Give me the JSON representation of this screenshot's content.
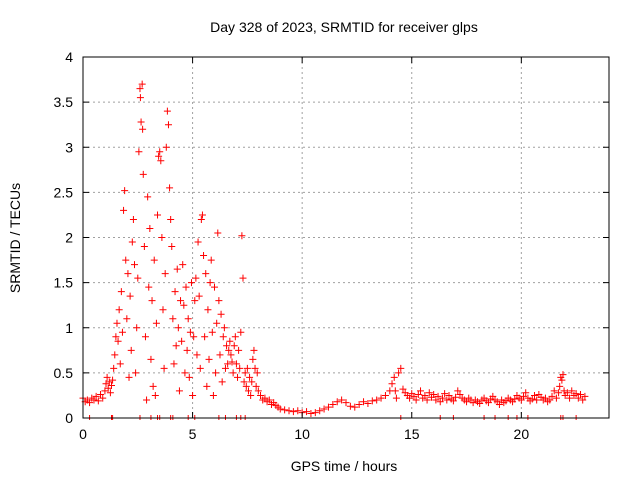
{
  "chart_data": {
    "type": "scatter",
    "title": "Day 328 of 2023, SRMTID for receiver glps",
    "xlabel": "GPS time / hours",
    "ylabel": "SRMTID / TECUs",
    "xlim": [
      0,
      24
    ],
    "ylim": [
      0,
      4
    ],
    "xticks": [
      0,
      5,
      10,
      15,
      20
    ],
    "xtick_labels": [
      "0",
      "5",
      "10",
      "15",
      "20"
    ],
    "yticks": [
      0,
      0.5,
      1,
      1.5,
      2,
      2.5,
      3,
      3.5,
      4
    ],
    "ytick_labels": [
      "0",
      "0.5",
      "1",
      "1.5",
      "2",
      "2.5",
      "3",
      "3.5",
      "4"
    ],
    "grid": true,
    "marker": "+",
    "color": "#ff0000",
    "series": [
      {
        "name": "SRMTID",
        "points": [
          [
            0.0,
            0.22
          ],
          [
            0.1,
            0.18
          ],
          [
            0.2,
            0.2
          ],
          [
            0.3,
            0.17
          ],
          [
            0.4,
            0.22
          ],
          [
            0.5,
            0.2
          ],
          [
            0.6,
            0.24
          ],
          [
            0.7,
            0.19
          ],
          [
            0.8,
            0.26
          ],
          [
            0.9,
            0.22
          ],
          [
            1.0,
            0.3
          ],
          [
            1.05,
            0.38
          ],
          [
            1.1,
            0.45
          ],
          [
            1.15,
            0.33
          ],
          [
            1.2,
            0.4
          ],
          [
            1.25,
            0.28
          ],
          [
            1.3,
            0.36
          ],
          [
            1.35,
            0.42
          ],
          [
            1.4,
            0.55
          ],
          [
            1.45,
            0.7
          ],
          [
            1.5,
            0.9
          ],
          [
            1.55,
            1.05
          ],
          [
            1.6,
            0.85
          ],
          [
            1.65,
            1.2
          ],
          [
            1.7,
            0.6
          ],
          [
            1.75,
            1.4
          ],
          [
            1.8,
            0.95
          ],
          [
            1.85,
            2.3
          ],
          [
            1.9,
            2.52
          ],
          [
            1.95,
            1.75
          ],
          [
            2.0,
            1.1
          ],
          [
            2.05,
            1.6
          ],
          [
            2.1,
            0.45
          ],
          [
            2.15,
            1.35
          ],
          [
            2.2,
            0.75
          ],
          [
            2.25,
            1.95
          ],
          [
            2.3,
            2.2
          ],
          [
            2.35,
            1.7
          ],
          [
            2.4,
            0.5
          ],
          [
            2.45,
            1.0
          ],
          [
            2.5,
            1.55
          ],
          [
            2.55,
            2.95
          ],
          [
            2.6,
            3.65
          ],
          [
            2.62,
            3.55
          ],
          [
            2.65,
            3.28
          ],
          [
            2.7,
            3.7
          ],
          [
            2.72,
            3.2
          ],
          [
            2.75,
            2.7
          ],
          [
            2.8,
            1.9
          ],
          [
            2.85,
            0.9
          ],
          [
            2.9,
            0.2
          ],
          [
            2.95,
            2.45
          ],
          [
            3.0,
            1.45
          ],
          [
            3.05,
            2.1
          ],
          [
            3.1,
            0.65
          ],
          [
            3.15,
            1.3
          ],
          [
            3.2,
            0.35
          ],
          [
            3.25,
            1.75
          ],
          [
            3.3,
            0.25
          ],
          [
            3.35,
            1.05
          ],
          [
            3.4,
            2.25
          ],
          [
            3.45,
            2.9
          ],
          [
            3.5,
            2.95
          ],
          [
            3.55,
            2.85
          ],
          [
            3.6,
            2.0
          ],
          [
            3.65,
            1.2
          ],
          [
            3.7,
            0.55
          ],
          [
            3.75,
            1.6
          ],
          [
            3.8,
            3.0
          ],
          [
            3.85,
            3.4
          ],
          [
            3.9,
            3.25
          ],
          [
            3.95,
            2.55
          ],
          [
            4.0,
            2.2
          ],
          [
            4.05,
            1.9
          ],
          [
            4.1,
            1.1
          ],
          [
            4.15,
            0.6
          ],
          [
            4.2,
            1.4
          ],
          [
            4.25,
            0.8
          ],
          [
            4.3,
            1.65
          ],
          [
            4.35,
            1.0
          ],
          [
            4.4,
            0.3
          ],
          [
            4.45,
            1.3
          ],
          [
            4.5,
            0.85
          ],
          [
            4.55,
            1.7
          ],
          [
            4.6,
            1.25
          ],
          [
            4.65,
            0.5
          ],
          [
            4.7,
            1.45
          ],
          [
            4.75,
            0.75
          ],
          [
            4.8,
            1.1
          ],
          [
            4.85,
            0.45
          ],
          [
            4.9,
            0.95
          ],
          [
            4.95,
            1.5
          ],
          [
            5.0,
            0.25
          ],
          [
            5.05,
            0.9
          ],
          [
            5.1,
            1.3
          ],
          [
            5.15,
            1.55
          ],
          [
            5.2,
            0.7
          ],
          [
            5.25,
            1.95
          ],
          [
            5.3,
            1.35
          ],
          [
            5.35,
            0.55
          ],
          [
            5.4,
            2.2
          ],
          [
            5.45,
            2.25
          ],
          [
            5.5,
            1.8
          ],
          [
            5.55,
            0.9
          ],
          [
            5.6,
            1.6
          ],
          [
            5.65,
            0.35
          ],
          [
            5.7,
            1.2
          ],
          [
            5.75,
            0.65
          ],
          [
            5.8,
            1.5
          ],
          [
            5.85,
            1.75
          ],
          [
            5.9,
            0.95
          ],
          [
            5.95,
            0.25
          ],
          [
            6.0,
            1.45
          ],
          [
            6.05,
            0.5
          ],
          [
            6.1,
            1.05
          ],
          [
            6.15,
            2.05
          ],
          [
            6.2,
            1.3
          ],
          [
            6.25,
            0.7
          ],
          [
            6.3,
            1.15
          ],
          [
            6.35,
            0.4
          ],
          [
            6.4,
            0.9
          ],
          [
            6.45,
            1.0
          ],
          [
            6.5,
            0.55
          ],
          [
            6.55,
            0.8
          ],
          [
            6.6,
            0.6
          ],
          [
            6.65,
            0.75
          ],
          [
            6.7,
            0.85
          ],
          [
            6.75,
            0.7
          ],
          [
            6.8,
            0.62
          ],
          [
            6.85,
            0.5
          ],
          [
            6.9,
            0.8
          ],
          [
            6.95,
            0.9
          ],
          [
            7.0,
            0.6
          ],
          [
            7.05,
            0.45
          ],
          [
            7.1,
            0.75
          ],
          [
            7.15,
            0.55
          ],
          [
            7.2,
            0.95
          ],
          [
            7.25,
            2.02
          ],
          [
            7.3,
            1.55
          ],
          [
            7.35,
            0.4
          ],
          [
            7.4,
            0.5
          ],
          [
            7.45,
            0.35
          ],
          [
            7.5,
            0.55
          ],
          [
            7.55,
            0.3
          ],
          [
            7.6,
            0.45
          ],
          [
            7.65,
            0.25
          ],
          [
            7.7,
            0.4
          ],
          [
            7.75,
            0.65
          ],
          [
            7.8,
            0.75
          ],
          [
            7.85,
            0.55
          ],
          [
            7.9,
            0.35
          ],
          [
            7.95,
            0.5
          ],
          [
            8.0,
            0.3
          ],
          [
            8.1,
            0.25
          ],
          [
            8.2,
            0.2
          ],
          [
            8.3,
            0.22
          ],
          [
            8.4,
            0.18
          ],
          [
            8.5,
            0.2
          ],
          [
            8.6,
            0.15
          ],
          [
            8.7,
            0.17
          ],
          [
            8.8,
            0.14
          ],
          [
            8.9,
            0.12
          ],
          [
            9.0,
            0.1
          ],
          [
            9.2,
            0.09
          ],
          [
            9.4,
            0.08
          ],
          [
            9.6,
            0.07
          ],
          [
            9.8,
            0.08
          ],
          [
            10.0,
            0.06
          ],
          [
            10.2,
            0.07
          ],
          [
            10.4,
            0.05
          ],
          [
            10.6,
            0.06
          ],
          [
            10.8,
            0.08
          ],
          [
            11.0,
            0.1
          ],
          [
            11.2,
            0.12
          ],
          [
            11.4,
            0.15
          ],
          [
            11.6,
            0.18
          ],
          [
            11.8,
            0.2
          ],
          [
            12.0,
            0.17
          ],
          [
            12.2,
            0.13
          ],
          [
            12.4,
            0.12
          ],
          [
            12.6,
            0.15
          ],
          [
            12.8,
            0.18
          ],
          [
            13.0,
            0.16
          ],
          [
            13.2,
            0.19
          ],
          [
            13.4,
            0.2
          ],
          [
            13.6,
            0.22
          ],
          [
            13.8,
            0.25
          ],
          [
            14.0,
            0.3
          ],
          [
            14.1,
            0.38
          ],
          [
            14.2,
            0.45
          ],
          [
            14.25,
            0.3
          ],
          [
            14.3,
            0.22
          ],
          [
            14.4,
            0.5
          ],
          [
            14.5,
            0.55
          ],
          [
            14.6,
            0.32
          ],
          [
            14.7,
            0.28
          ],
          [
            14.8,
            0.25
          ],
          [
            14.9,
            0.22
          ],
          [
            15.0,
            0.27
          ],
          [
            15.1,
            0.24
          ],
          [
            15.2,
            0.2
          ],
          [
            15.3,
            0.26
          ],
          [
            15.4,
            0.3
          ],
          [
            15.5,
            0.22
          ],
          [
            15.6,
            0.25
          ],
          [
            15.7,
            0.2
          ],
          [
            15.8,
            0.28
          ],
          [
            15.9,
            0.23
          ],
          [
            16.0,
            0.26
          ],
          [
            16.1,
            0.2
          ],
          [
            16.2,
            0.24
          ],
          [
            16.3,
            0.18
          ],
          [
            16.4,
            0.22
          ],
          [
            16.5,
            0.27
          ],
          [
            16.6,
            0.2
          ],
          [
            16.7,
            0.25
          ],
          [
            16.8,
            0.21
          ],
          [
            16.9,
            0.19
          ],
          [
            17.0,
            0.23
          ],
          [
            17.1,
            0.3
          ],
          [
            17.2,
            0.26
          ],
          [
            17.3,
            0.22
          ],
          [
            17.4,
            0.2
          ],
          [
            17.5,
            0.18
          ],
          [
            17.6,
            0.22
          ],
          [
            17.7,
            0.2
          ],
          [
            17.8,
            0.17
          ],
          [
            17.9,
            0.2
          ],
          [
            18.0,
            0.18
          ],
          [
            18.1,
            0.16
          ],
          [
            18.2,
            0.2
          ],
          [
            18.3,
            0.22
          ],
          [
            18.4,
            0.19
          ],
          [
            18.5,
            0.17
          ],
          [
            18.6,
            0.21
          ],
          [
            18.7,
            0.24
          ],
          [
            18.8,
            0.2
          ],
          [
            18.9,
            0.18
          ],
          [
            19.0,
            0.15
          ],
          [
            19.1,
            0.2
          ],
          [
            19.2,
            0.17
          ],
          [
            19.3,
            0.19
          ],
          [
            19.4,
            0.22
          ],
          [
            19.5,
            0.2
          ],
          [
            19.6,
            0.18
          ],
          [
            19.7,
            0.21
          ],
          [
            19.8,
            0.25
          ],
          [
            19.9,
            0.22
          ],
          [
            20.0,
            0.2
          ],
          [
            20.1,
            0.24
          ],
          [
            20.2,
            0.28
          ],
          [
            20.3,
            0.22
          ],
          [
            20.4,
            0.19
          ],
          [
            20.5,
            0.21
          ],
          [
            20.6,
            0.25
          ],
          [
            20.7,
            0.2
          ],
          [
            20.8,
            0.26
          ],
          [
            20.9,
            0.23
          ],
          [
            21.0,
            0.2
          ],
          [
            21.1,
            0.22
          ],
          [
            21.2,
            0.18
          ],
          [
            21.3,
            0.2
          ],
          [
            21.4,
            0.24
          ],
          [
            21.5,
            0.3
          ],
          [
            21.6,
            0.22
          ],
          [
            21.7,
            0.28
          ],
          [
            21.75,
            0.35
          ],
          [
            21.8,
            0.45
          ],
          [
            21.85,
            0.42
          ],
          [
            21.9,
            0.48
          ],
          [
            21.95,
            0.3
          ],
          [
            22.0,
            0.25
          ],
          [
            22.1,
            0.28
          ],
          [
            22.2,
            0.22
          ],
          [
            22.3,
            0.3
          ],
          [
            22.4,
            0.25
          ],
          [
            22.5,
            0.27
          ],
          [
            22.6,
            0.22
          ],
          [
            22.7,
            0.26
          ],
          [
            22.8,
            0.2
          ],
          [
            22.9,
            0.24
          ]
        ]
      }
    ],
    "rug_x": [
      0.3,
      1.3,
      1.35,
      2.6,
      3.1,
      3.4,
      3.5,
      4.0,
      4.1,
      4.8,
      5.1,
      6.2,
      6.5,
      7.0,
      7.2,
      7.4,
      14.5,
      16.3,
      16.9,
      18.3,
      18.8,
      19.4,
      19.8,
      20.3,
      21.8,
      21.9,
      22.5
    ],
    "y_rug_at": 0
  }
}
